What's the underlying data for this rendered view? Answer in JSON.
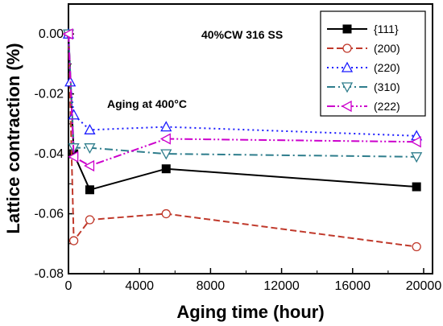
{
  "chart_data": {
    "type": "line",
    "title": "",
    "xlabel": "Aging time (hour)",
    "ylabel": "Lattice contraction (%)",
    "xlim": [
      0,
      20500
    ],
    "ylim": [
      -0.08,
      0.01
    ],
    "xticks": [
      0,
      4000,
      8000,
      12000,
      16000,
      20000
    ],
    "yticks": [
      0.0,
      -0.02,
      -0.04,
      -0.06,
      -0.08
    ],
    "xtick_labels": [
      "0",
      "4000",
      "8000",
      "12000",
      "16000",
      "20000"
    ],
    "ytick_labels": [
      "0.00",
      "-0.02",
      "-0.04",
      "-0.06",
      "-0.08"
    ],
    "grid": false,
    "legend_position": "top-right",
    "annotations": [
      "40%CW 316 SS",
      "Aging at 400°C"
    ],
    "series": [
      {
        "name": "{111}",
        "color": "#000000",
        "marker": "square-filled",
        "line": "solid",
        "x": [
          0,
          300,
          1200,
          5500,
          19600
        ],
        "y": [
          0.0,
          -0.04,
          -0.052,
          -0.045,
          -0.051
        ]
      },
      {
        "name": "(200)",
        "color": "#c0392b",
        "marker": "circle-open",
        "line": "dashed",
        "x": [
          0,
          300,
          1200,
          5500,
          19600
        ],
        "y": [
          0.0,
          -0.069,
          -0.062,
          -0.06,
          -0.071
        ]
      },
      {
        "name": "(220)",
        "color": "#1a1aff",
        "marker": "triangle-up-open",
        "line": "dotted",
        "x": [
          0,
          100,
          300,
          1200,
          5500,
          19600
        ],
        "y": [
          0.0,
          -0.016,
          -0.027,
          -0.032,
          -0.031,
          -0.034
        ]
      },
      {
        "name": "(310)",
        "color": "#2e7d8c",
        "marker": "triangle-down-open",
        "line": "dashdot",
        "x": [
          0,
          300,
          1200,
          5500,
          19600
        ],
        "y": [
          0.0,
          -0.038,
          -0.038,
          -0.04,
          -0.041
        ]
      },
      {
        "name": "(222)",
        "color": "#cc00cc",
        "marker": "triangle-left-open",
        "line": "dashdotdot",
        "x": [
          0,
          300,
          1200,
          5500,
          19600
        ],
        "y": [
          0.0,
          -0.041,
          -0.044,
          -0.035,
          -0.036
        ]
      }
    ]
  }
}
